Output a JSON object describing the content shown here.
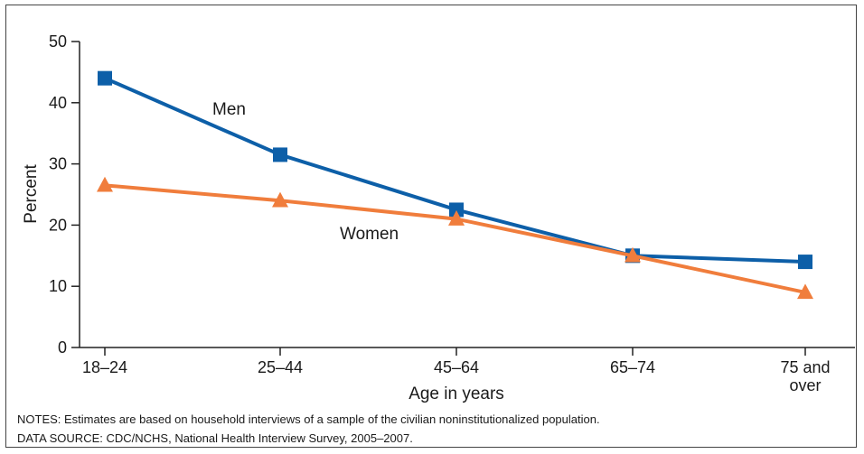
{
  "chart_data": {
    "type": "line",
    "categories": [
      "18–24",
      "25–44",
      "45–64",
      "65–74",
      "75 and over"
    ],
    "category_lines": [
      [
        "18–24"
      ],
      [
        "25–44"
      ],
      [
        "45–64"
      ],
      [
        "65–74"
      ],
      [
        "75 and",
        "over"
      ]
    ],
    "series": [
      {
        "name": "Men",
        "values": [
          44,
          31.5,
          22.5,
          15,
          14
        ],
        "color": "#0d5fa8",
        "marker": "square"
      },
      {
        "name": "Women",
        "values": [
          26.5,
          24,
          21,
          15,
          9
        ],
        "color": "#f07d3c",
        "marker": "triangle"
      }
    ],
    "xlabel": "Age in years",
    "ylabel": "Percent",
    "ylim": [
      0,
      50
    ],
    "yticks": [
      0,
      10,
      20,
      30,
      40,
      50
    ],
    "grid": false
  },
  "notes": "NOTES: Estimates are based on household interviews of a sample of the civilian noninstitutionalized population.",
  "source": "DATA SOURCE: CDC/NCHS, National Health Interview Survey, 2005–2007."
}
